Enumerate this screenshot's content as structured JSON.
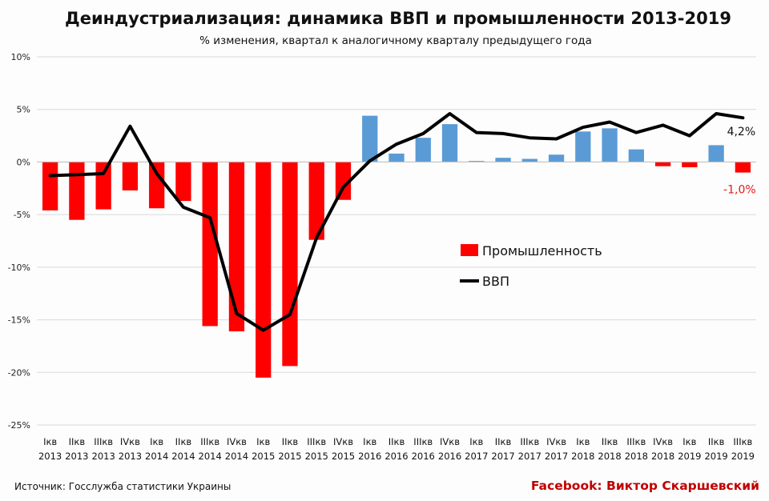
{
  "chart_data": {
    "type": "bar+line",
    "title": "Деиндустриализация: динамика ВВП и промышленности 2013-2019",
    "subtitle": "% изменения, квартал к аналогичному кварталу предыдущего года",
    "categories": [
      [
        "Iкв",
        "2013"
      ],
      [
        "IIкв",
        "2013"
      ],
      [
        "IIIкв",
        "2013"
      ],
      [
        "IVкв",
        "2013"
      ],
      [
        "Iкв",
        "2014"
      ],
      [
        "IIкв",
        "2014"
      ],
      [
        "IIIкв",
        "2014"
      ],
      [
        "IVкв",
        "2014"
      ],
      [
        "Iкв",
        "2015"
      ],
      [
        "IIкв",
        "2015"
      ],
      [
        "IIIкв",
        "2015"
      ],
      [
        "IVкв",
        "2015"
      ],
      [
        "Iкв",
        "2016"
      ],
      [
        "IIкв",
        "2016"
      ],
      [
        "IIIкв",
        "2016"
      ],
      [
        "IVкв",
        "2016"
      ],
      [
        "Iкв",
        "2017"
      ],
      [
        "IIкв",
        "2017"
      ],
      [
        "IIIкв",
        "2017"
      ],
      [
        "IVкв",
        "2017"
      ],
      [
        "Iкв",
        "2018"
      ],
      [
        "IIкв",
        "2018"
      ],
      [
        "IIIкв",
        "2018"
      ],
      [
        "IVкв",
        "2018"
      ],
      [
        "Iкв",
        "2019"
      ],
      [
        "IIкв",
        "2019"
      ],
      [
        "IIIкв",
        "2019"
      ]
    ],
    "series": [
      {
        "name": "Промышленность",
        "type": "bar",
        "values": [
          -4.6,
          -5.5,
          -4.5,
          -2.7,
          -4.4,
          -3.7,
          -15.6,
          -16.1,
          -20.5,
          -19.4,
          -7.4,
          -3.6,
          4.4,
          0.8,
          2.3,
          3.6,
          0.1,
          0.4,
          0.3,
          0.7,
          2.9,
          3.2,
          1.2,
          -0.4,
          -0.5,
          1.6,
          -1.0
        ],
        "negative_color": "#ff0000",
        "positive_color": "#5b9bd5"
      },
      {
        "name": "ВВП",
        "type": "line",
        "values": [
          -1.3,
          -1.2,
          -1.1,
          3.4,
          -1.1,
          -4.3,
          -5.3,
          -14.4,
          -16.0,
          -14.5,
          -7.2,
          -2.4,
          0.1,
          1.7,
          2.7,
          4.6,
          2.8,
          2.7,
          2.3,
          2.2,
          3.3,
          3.8,
          2.8,
          3.5,
          2.5,
          4.6,
          4.2
        ],
        "color": "#000000"
      }
    ],
    "ylim": [
      -25,
      10
    ],
    "yticks": [
      10,
      5,
      0,
      -5,
      -10,
      -15,
      -20,
      -25
    ],
    "ytick_labels": [
      "10%",
      "5%",
      "0%",
      "-5%",
      "-10%",
      "-15%",
      "-20%",
      "-25%"
    ],
    "grid": true,
    "legend": [
      "Промышленность",
      "ВВП"
    ],
    "annotations": [
      {
        "text": "4,2%",
        "series": "ВВП",
        "index": 26,
        "color": "#111111"
      },
      {
        "text": "-1,0%",
        "series": "Промышленность",
        "index": 26,
        "color": "#e31a1c"
      }
    ]
  },
  "footer": {
    "source": "Источник: Госслужба статистики Украины",
    "credit": "Facebook: Виктор Скаршевский",
    "credit_color": "#c00000"
  }
}
